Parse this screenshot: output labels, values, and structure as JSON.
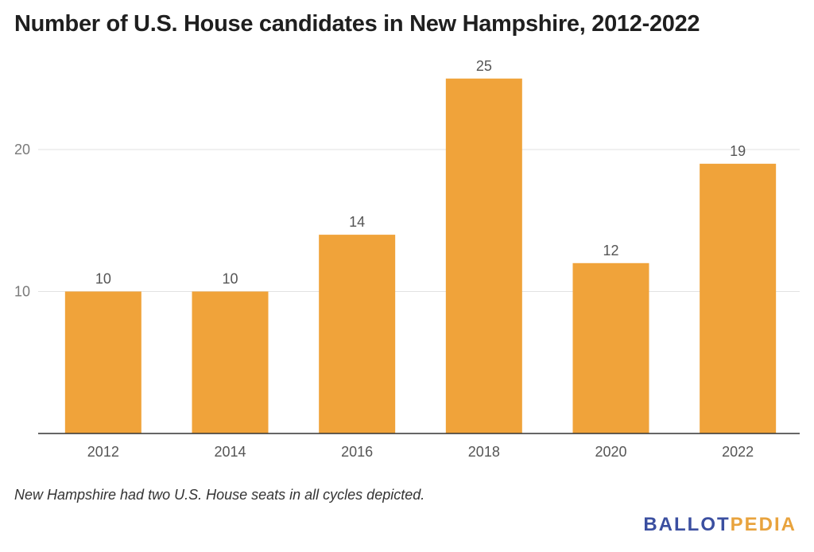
{
  "title": "Number of U.S. House candidates in New Hampshire, 2012-2022",
  "note": "New Hampshire had two U.S. House seats in all cycles depicted.",
  "brand": {
    "part1": "BALLOT",
    "part2": "PEDIA",
    "color1": "#3b4fa0",
    "color2": "#e8a33d"
  },
  "chart_data": {
    "type": "bar",
    "title": "Number of U.S. House candidates in New Hampshire, 2012-2022",
    "xlabel": "",
    "ylabel": "",
    "categories": [
      "2012",
      "2014",
      "2016",
      "2018",
      "2020",
      "2022"
    ],
    "values": [
      10,
      10,
      14,
      25,
      12,
      19
    ],
    "ylim": [
      0,
      25
    ],
    "yticks": [
      10,
      20
    ],
    "grid": true,
    "bar_color": "#f0a33a",
    "data_labels": true
  }
}
